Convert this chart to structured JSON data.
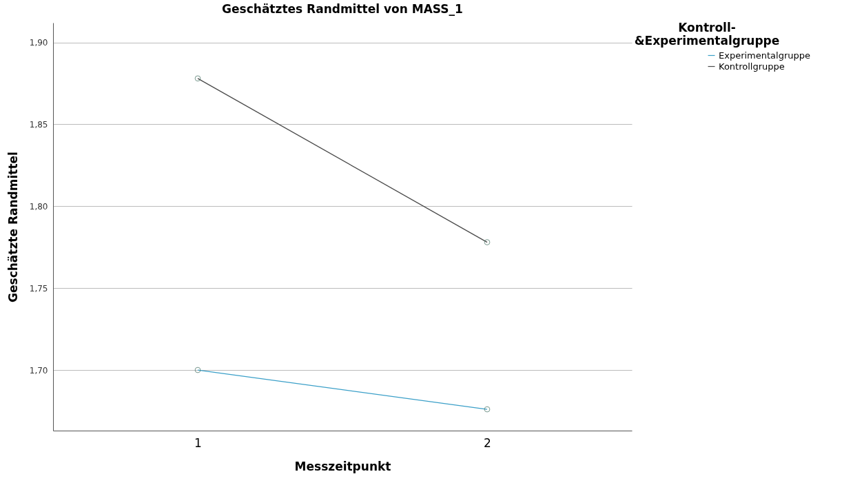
{
  "chart_data": {
    "type": "line",
    "title": "Geschätztes Randmittel von MASS_1",
    "xlabel": "Messzeitpunkt",
    "ylabel": "Geschätzte Randmittel",
    "legend_title": "Kontroll-\n&Experimentalgruppe",
    "categories": [
      "1",
      "2"
    ],
    "series": [
      {
        "name": "Experimentalgruppe",
        "color": "#3a9fc8",
        "values": [
          1.7,
          1.676
        ]
      },
      {
        "name": "Kontrollgruppe",
        "color": "#4a4a4a",
        "values": [
          1.878,
          1.778
        ]
      }
    ],
    "ylim": [
      1.663,
      1.912
    ],
    "yticks": [
      {
        "value": 1.7,
        "label": "1,70"
      },
      {
        "value": 1.75,
        "label": "1,75"
      },
      {
        "value": 1.8,
        "label": "1,80"
      },
      {
        "value": 1.85,
        "label": "1,85"
      },
      {
        "value": 1.9,
        "label": "1,90"
      }
    ],
    "grid": "y",
    "legend": "top right",
    "marker": "circle",
    "line_style": "solid"
  }
}
